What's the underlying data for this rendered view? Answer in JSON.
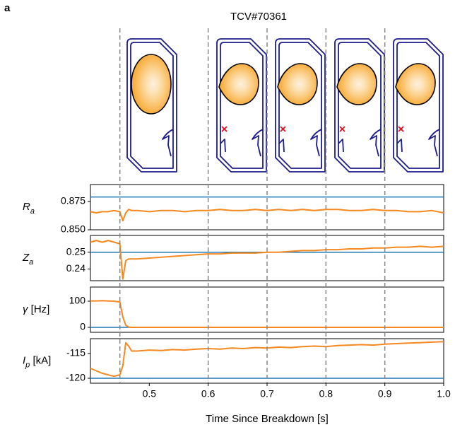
{
  "panel_label": "a",
  "chart_data": {
    "type": "line",
    "title": "TCV#70361",
    "x": [
      0.4,
      0.41,
      0.42,
      0.43,
      0.44,
      0.45,
      0.455,
      0.46,
      0.465,
      0.47,
      0.48,
      0.5,
      0.52,
      0.54,
      0.56,
      0.58,
      0.6,
      0.62,
      0.64,
      0.66,
      0.68,
      0.7,
      0.72,
      0.74,
      0.76,
      0.78,
      0.8,
      0.82,
      0.84,
      0.86,
      0.88,
      0.9,
      0.92,
      0.94,
      0.96,
      0.98,
      1.0
    ],
    "xlim": [
      0.4,
      1.0
    ],
    "xticks": [
      0.5,
      0.6,
      0.7,
      0.8,
      0.9,
      {
        "value": 1,
        "label": "1.0"
      }
    ],
    "xlabel": "Time Since Breakdown [s]",
    "events": [
      0.45,
      0.6,
      0.7,
      0.8,
      0.9
    ],
    "event_color": "#888888",
    "panels": [
      {
        "ylabel": [
          {
            "text": "R",
            "style": "italic"
          },
          {
            "text": "a",
            "style": "sub"
          }
        ],
        "ylim": [
          0.85,
          0.89
        ],
        "yticks": [
          0.875,
          {
            "value": 0.85,
            "label": "0.850"
          }
        ],
        "reference": 0.879,
        "reference_color": "#1f77b4",
        "color": "#f5891f",
        "values": [
          0.866,
          0.865,
          0.866,
          0.866,
          0.867,
          0.866,
          0.858,
          0.865,
          0.868,
          0.867,
          0.867,
          0.866,
          0.867,
          0.867,
          0.866,
          0.867,
          0.867,
          0.868,
          0.867,
          0.867,
          0.868,
          0.867,
          0.868,
          0.867,
          0.868,
          0.867,
          0.868,
          0.868,
          0.867,
          0.867,
          0.868,
          0.867,
          0.867,
          0.866,
          0.866,
          0.867,
          0.865
        ]
      },
      {
        "ylabel": [
          {
            "text": "Z",
            "style": "italic"
          },
          {
            "text": "a",
            "style": "sub"
          }
        ],
        "ylim": [
          0.233,
          0.26
        ],
        "yticks": [
          0.25,
          0.24
        ],
        "reference": 0.25,
        "reference_color": "#1f77b4",
        "color": "#f5891f",
        "values": [
          0.256,
          0.257,
          0.256,
          0.257,
          0.256,
          0.255,
          0.234,
          0.245,
          0.246,
          0.246,
          0.246,
          0.2465,
          0.247,
          0.2475,
          0.248,
          0.2485,
          0.249,
          0.249,
          0.2495,
          0.2495,
          0.2495,
          0.25,
          0.25,
          0.2505,
          0.251,
          0.251,
          0.2515,
          0.2515,
          0.252,
          0.252,
          0.2525,
          0.2525,
          0.253,
          0.253,
          0.2535,
          0.253,
          0.2535
        ]
      },
      {
        "ylabel": [
          {
            "text": "γ",
            "style": "italic"
          },
          {
            "text": " [Hz]",
            "style": "normal"
          }
        ],
        "ylim": [
          -19,
          154
        ],
        "yticks": [
          100,
          0
        ],
        "reference": 0,
        "reference_color": "#1f77b4",
        "color": "#f5891f",
        "values": [
          101,
          101,
          102,
          101,
          100,
          97,
          40,
          8,
          1,
          0,
          0,
          0,
          0,
          0,
          0,
          0,
          0,
          0,
          0,
          0,
          0,
          0,
          0,
          0,
          0,
          0,
          0,
          0,
          0,
          0,
          0,
          0,
          0,
          0,
          0,
          0,
          0
        ]
      },
      {
        "ylabel": [
          {
            "text": "I",
            "style": "italic"
          },
          {
            "text": "p",
            "style": "sub"
          },
          {
            "text": " [kA]",
            "style": "normal"
          }
        ],
        "ylim": [
          -121,
          -112
        ],
        "yticks": [
          -115,
          -120
        ],
        "reference": -120,
        "reference_color": "#1f77b4",
        "color": "#f5891f",
        "values": [
          -118,
          -118.5,
          -119,
          -119.3,
          -119.6,
          -119.3,
          -117.5,
          -112.8,
          -113.5,
          -114.5,
          -114.5,
          -114.3,
          -114.4,
          -114.2,
          -114.3,
          -114.1,
          -114,
          -114.1,
          -113.9,
          -114,
          -113.8,
          -113.9,
          -113.7,
          -113.8,
          -113.6,
          -113.5,
          -113.6,
          -113.4,
          -113.3,
          -113.2,
          -113.3,
          -113.1,
          -113,
          -112.9,
          -112.8,
          -112.7,
          -112.6
        ]
      }
    ]
  }
}
